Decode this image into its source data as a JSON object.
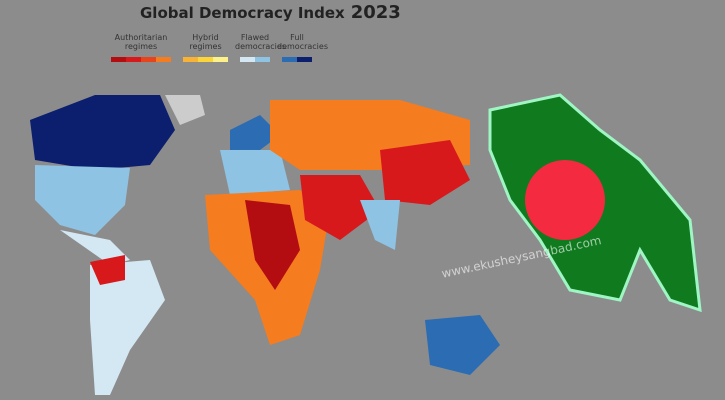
{
  "header": {
    "title": "Global Democracy Index",
    "year": "2023"
  },
  "legend": [
    {
      "label": "Authoritarian regimes",
      "colors": [
        "#b30d12",
        "#d7191c",
        "#e8441c",
        "#f57c1f"
      ]
    },
    {
      "label": "Hybrid regimes",
      "colors": [
        "#f9b233",
        "#fbd53a",
        "#fdf28a"
      ]
    },
    {
      "label": "Flawed democracies",
      "colors": [
        "#d4e8f3",
        "#8fc3e3"
      ]
    },
    {
      "label": "Full democracies",
      "colors": [
        "#2b6cb3",
        "#0c1f6e"
      ]
    }
  ],
  "watermark": "www.ekusheysangbad.com"
}
